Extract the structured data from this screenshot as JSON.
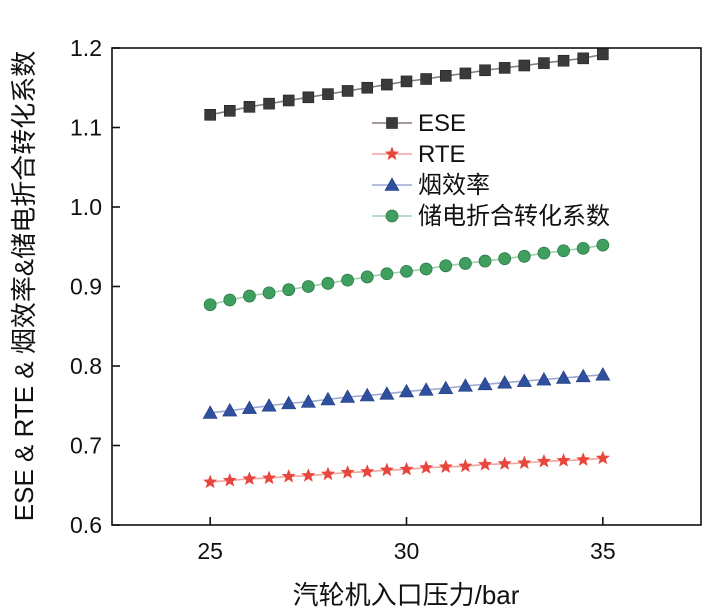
{
  "chart_data": {
    "type": "line",
    "xlabel": "汽轮机入口压力/bar",
    "ylabel": "ESE & RTE & 烟效率&储电折合转化系数",
    "xlim": [
      22.5,
      37.5
    ],
    "ylim": [
      0.6,
      1.2
    ],
    "x_ticks": [
      25,
      30,
      35
    ],
    "y_ticks": [
      0.6,
      0.7,
      0.8,
      0.9,
      1.0,
      1.1,
      1.2
    ],
    "x_tick_labels": [
      "25",
      "30",
      "35"
    ],
    "y_tick_labels": [
      "0.6",
      "0.7",
      "0.8",
      "0.9",
      "1.0",
      "1.1",
      "1.2"
    ],
    "grid": false,
    "legend_position": "upper-center",
    "x": [
      25,
      25.5,
      26,
      26.5,
      27,
      27.5,
      28,
      28.5,
      29,
      29.5,
      30,
      30.5,
      31,
      31.5,
      32,
      32.5,
      33,
      33.5,
      34,
      34.5,
      35
    ],
    "series": [
      {
        "name": "ESE",
        "marker": "square",
        "color": "#3a3a3a",
        "line_color": "#8c7d78",
        "values": [
          1.116,
          1.121,
          1.126,
          1.13,
          1.134,
          1.138,
          1.142,
          1.146,
          1.15,
          1.154,
          1.158,
          1.161,
          1.165,
          1.168,
          1.172,
          1.175,
          1.178,
          1.181,
          1.184,
          1.187,
          1.192
        ]
      },
      {
        "name": "RTE",
        "marker": "star",
        "color": "#e8453c",
        "line_color": "#f2a39b",
        "values": [
          0.654,
          0.656,
          0.658,
          0.659,
          0.661,
          0.662,
          0.664,
          0.666,
          0.667,
          0.669,
          0.67,
          0.672,
          0.673,
          0.674,
          0.676,
          0.677,
          0.678,
          0.68,
          0.681,
          0.682,
          0.684
        ]
      },
      {
        "name": "烟效率",
        "marker": "triangle",
        "color": "#2f4f9f",
        "line_color": "#9ea9d1",
        "values": [
          0.741,
          0.744,
          0.747,
          0.75,
          0.753,
          0.755,
          0.758,
          0.761,
          0.763,
          0.765,
          0.768,
          0.77,
          0.772,
          0.775,
          0.777,
          0.779,
          0.781,
          0.783,
          0.785,
          0.787,
          0.789
        ]
      },
      {
        "name": "储电折合转化系数",
        "marker": "circle",
        "color": "#3f9f5f",
        "line_color": "#9fd0ac",
        "values": [
          0.877,
          0.883,
          0.888,
          0.892,
          0.896,
          0.9,
          0.904,
          0.908,
          0.912,
          0.916,
          0.919,
          0.922,
          0.926,
          0.929,
          0.932,
          0.935,
          0.938,
          0.942,
          0.945,
          0.948,
          0.952
        ]
      }
    ]
  }
}
